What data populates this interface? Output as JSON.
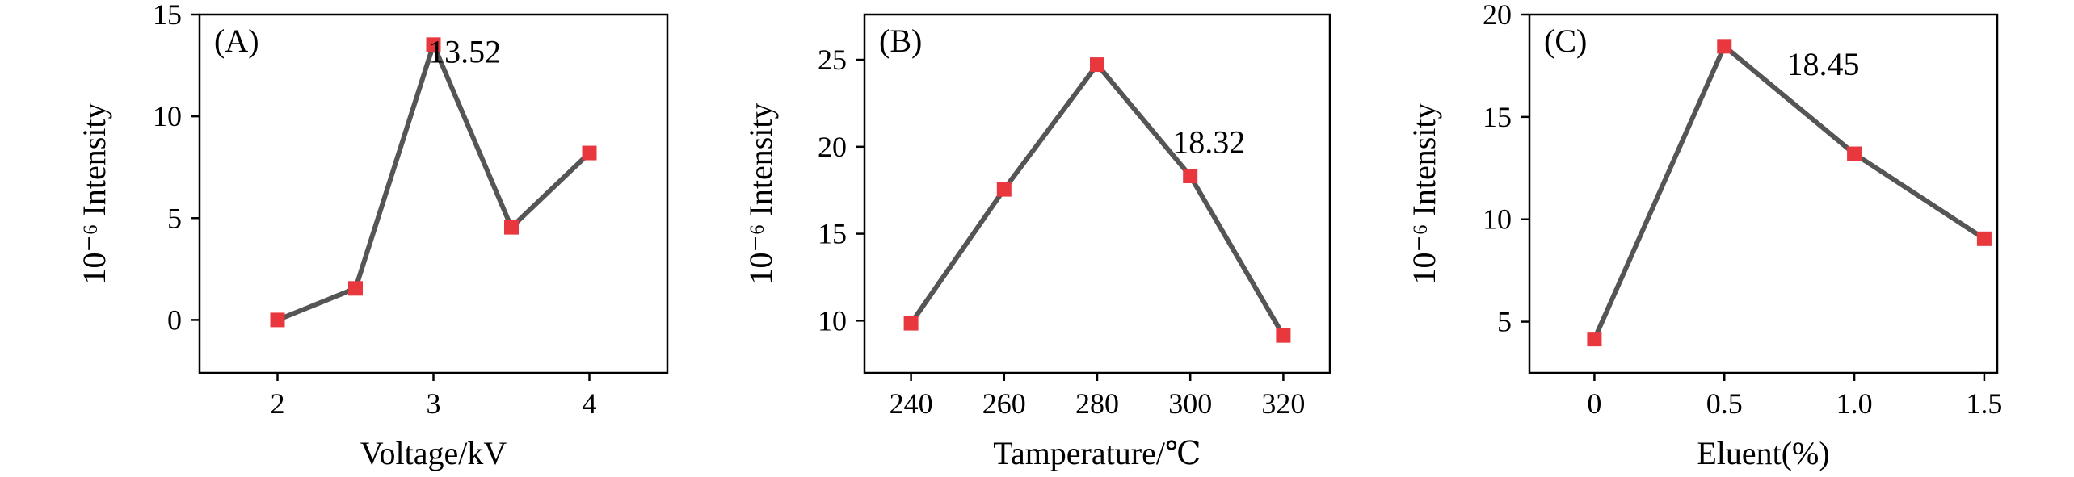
{
  "colors": {
    "line": "#555555",
    "marker": "#e8383d",
    "axis": "#000000"
  },
  "chart_data": [
    {
      "type": "line",
      "panel_label": "(A)",
      "xlabel": "Voltage/kV",
      "ylabel": "10⁻⁶ Intensity",
      "x": [
        2,
        2.5,
        3,
        3.5,
        4
      ],
      "series": [
        {
          "values": [
            0,
            1.55,
            13.52,
            4.55,
            8.2
          ]
        }
      ],
      "xlim": [
        1.5,
        4.5
      ],
      "ylim": [
        -2.6,
        15
      ],
      "xticks": [
        2,
        3,
        4
      ],
      "xtick_labels": [
        "2",
        "3",
        "4"
      ],
      "yticks": [
        0,
        5,
        10,
        15
      ],
      "ytick_labels": [
        "0",
        "5",
        "10",
        "15"
      ],
      "annotation": {
        "text": "13.52",
        "x": 3.2,
        "y": 13.2
      },
      "grid": false
    },
    {
      "type": "line",
      "panel_label": "(B)",
      "xlabel": "Tamperature/℃",
      "ylabel": "10⁻⁶ Intensity",
      "x": [
        240,
        260,
        280,
        300,
        320
      ],
      "series": [
        {
          "values": [
            9.85,
            17.55,
            24.72,
            18.32,
            9.15
          ]
        }
      ],
      "xlim": [
        230,
        330
      ],
      "ylim": [
        7,
        27.6
      ],
      "xticks": [
        240,
        260,
        280,
        300,
        320
      ],
      "xtick_labels": [
        "240",
        "260",
        "280",
        "300",
        "320"
      ],
      "yticks": [
        10,
        15,
        20,
        25
      ],
      "ytick_labels": [
        "10",
        "15",
        "20",
        "25"
      ],
      "annotation": {
        "text": "18.32",
        "x": 304,
        "y": 20.3
      },
      "grid": false
    },
    {
      "type": "line",
      "panel_label": "(C)",
      "xlabel": "Eluent(%)",
      "ylabel": "10⁻⁶ Intensity",
      "x": [
        0,
        0.5,
        1.0,
        1.5
      ],
      "series": [
        {
          "values": [
            4.15,
            18.45,
            13.2,
            9.05
          ]
        }
      ],
      "xlim": [
        -0.25,
        1.55
      ],
      "ylim": [
        2.5,
        20
      ],
      "xticks": [
        0,
        0.5,
        1.0,
        1.5
      ],
      "xtick_labels": [
        "0",
        "0.5",
        "1.0",
        "1.5"
      ],
      "yticks": [
        5,
        10,
        15,
        20
      ],
      "ytick_labels": [
        "5",
        "10",
        "15",
        "20"
      ],
      "annotation": {
        "text": "18.45",
        "x": 0.88,
        "y": 17.6
      },
      "grid": false
    }
  ]
}
